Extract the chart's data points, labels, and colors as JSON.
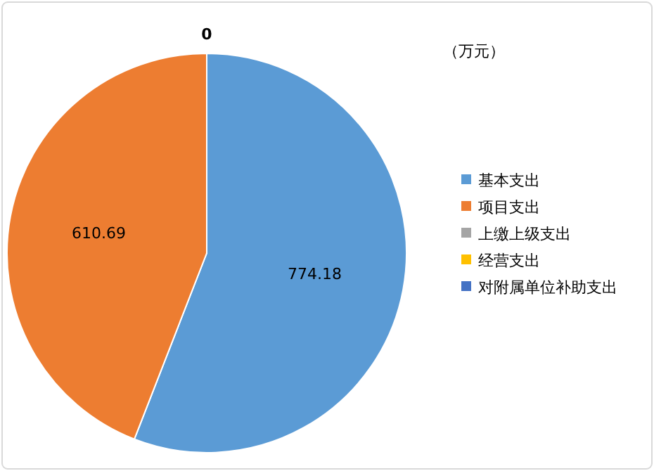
{
  "chart_data": {
    "type": "pie",
    "annotations": [
      "（万元）"
    ],
    "categories": [
      "基本支出",
      "项目支出",
      "上缴上级支出",
      "经营支出",
      "对附属单位补助支出"
    ],
    "values": [
      774.18,
      610.69,
      0,
      0,
      0
    ],
    "colors": [
      "#5b9bd5",
      "#ed7d31",
      "#a5a5a5",
      "#ffc000",
      "#4472c4"
    ],
    "value_labels": [
      "774.18",
      "610.69",
      "0",
      null,
      null
    ],
    "legend": "right"
  }
}
